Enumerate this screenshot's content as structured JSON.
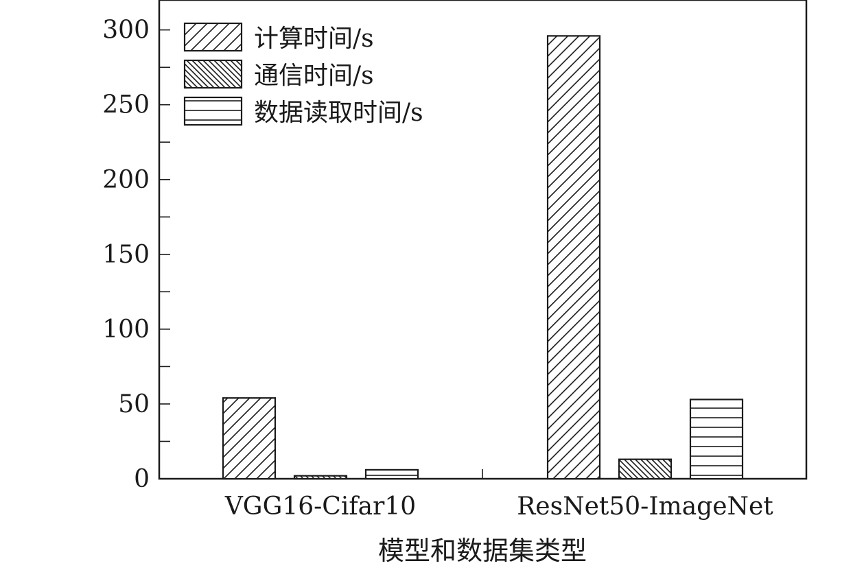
{
  "chart_data": {
    "type": "bar",
    "categories": [
      "VGG16-Cifar10",
      "ResNet50-ImageNet"
    ],
    "series": [
      {
        "name": "计算时间/s",
        "values": [
          54,
          296
        ],
        "pattern": "diagonal"
      },
      {
        "name": "通信时间/s",
        "values": [
          2,
          13
        ],
        "pattern": "dense-back-diagonal"
      },
      {
        "name": "数据读取时间/s",
        "values": [
          6,
          53
        ],
        "pattern": "horizontal"
      }
    ],
    "title": "",
    "xlabel": "模型和数据集类型",
    "ylabel": "",
    "ylim": [
      0,
      300
    ],
    "y_max": 320,
    "yticks": [
      "0",
      "50",
      "100",
      "150",
      "200",
      "250",
      "300"
    ],
    "grid": false,
    "legend_position": "top-left",
    "colors": {
      "stroke": "#1a1a1a",
      "fill": "#ffffff"
    }
  }
}
